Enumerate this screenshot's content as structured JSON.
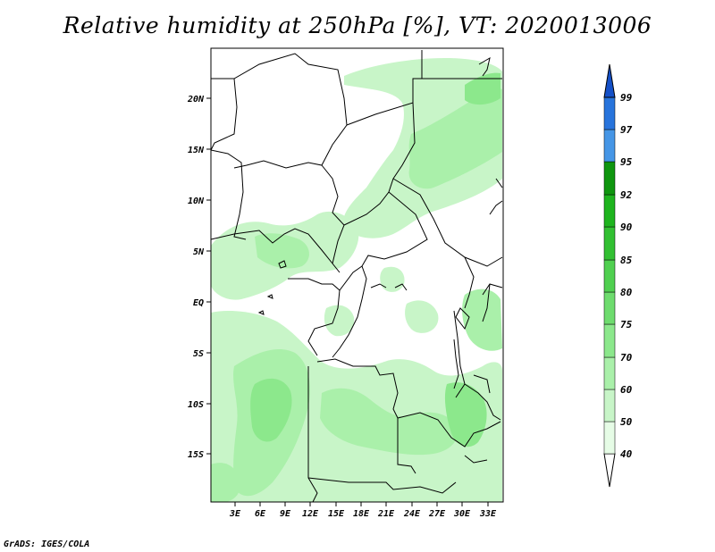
{
  "title": "Relative humidity at 250hPa [%], VT: 2020013006",
  "credit": "GrADS: IGES/COLA",
  "map": {
    "lat_labels": [
      "20N",
      "15N",
      "10N",
      "5N",
      "EQ",
      "5S",
      "10S",
      "15S"
    ],
    "lon_labels": [
      "3E",
      "6E",
      "9E",
      "12E",
      "15E",
      "18E",
      "21E",
      "24E",
      "27E",
      "30E",
      "33E"
    ]
  },
  "colorbar": {
    "labels": [
      "40",
      "50",
      "60",
      "70",
      "75",
      "80",
      "85",
      "90",
      "92",
      "95",
      "97",
      "99"
    ],
    "colors": [
      "#ffffff",
      "#e6fce6",
      "#c8f5c8",
      "#aaf0aa",
      "#8ce88c",
      "#6edc6e",
      "#50d050",
      "#32c032",
      "#1eb41e",
      "#0f960f",
      "#4696e6",
      "#2874dc",
      "#1450c8"
    ]
  }
}
